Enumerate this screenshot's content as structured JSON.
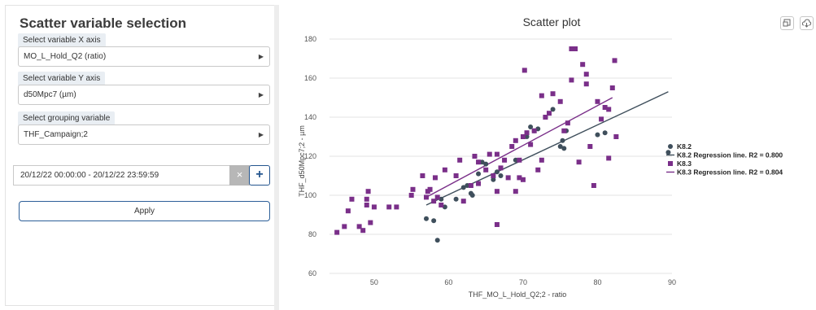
{
  "sidebar": {
    "title": "Scatter variable selection",
    "x_axis": {
      "label": "Select variable X axis",
      "value": "MO_L_Hold_Q2 (ratio)"
    },
    "y_axis": {
      "label": "Select variable Y axis",
      "value": "d50Mpc7 (µm)"
    },
    "grouping": {
      "label": "Select grouping variable",
      "value": "THF_Campaign;2"
    },
    "date_range": {
      "value": "20/12/22 00:00:00 - 20/12/22 23:59:59",
      "clear_symbol": "×",
      "add_symbol": "+"
    },
    "apply_label": "Apply"
  },
  "toolbar": {
    "expand_icon": "expand-icon",
    "download_icon": "cloud-download-icon"
  },
  "chart_data": {
    "type": "scatter",
    "title": "Scatter plot",
    "xlabel": "THF_MO_L_Hold_Q2;2 - ratio",
    "ylabel": "THF_d50Mpc7;2 - µm",
    "xlim": [
      44,
      90
    ],
    "ylim": [
      60,
      180
    ],
    "x_ticks": [
      50,
      60,
      70,
      80,
      90
    ],
    "y_ticks": [
      60,
      80,
      100,
      120,
      140,
      160,
      180
    ],
    "grid": "horizontal",
    "legend_position": "right",
    "series": [
      {
        "name": "K8.2",
        "marker": "circle",
        "color": "#3f4f5c",
        "points": [
          [
            57,
            88
          ],
          [
            58,
            87
          ],
          [
            58.5,
            77
          ],
          [
            59,
            98
          ],
          [
            59.5,
            94
          ],
          [
            61,
            98
          ],
          [
            62,
            104
          ],
          [
            62.5,
            105
          ],
          [
            63,
            101
          ],
          [
            63.2,
            100
          ],
          [
            64,
            111
          ],
          [
            64.5,
            117
          ],
          [
            65,
            116
          ],
          [
            66,
            108
          ],
          [
            66.5,
            112
          ],
          [
            67,
            110
          ],
          [
            69,
            118
          ],
          [
            70.5,
            130
          ],
          [
            71,
            135
          ],
          [
            71.5,
            133
          ],
          [
            72,
            134
          ],
          [
            73,
            140
          ],
          [
            74,
            144
          ],
          [
            75,
            125
          ],
          [
            75.3,
            128
          ],
          [
            75.5,
            124
          ],
          [
            75.8,
            133
          ],
          [
            80,
            131
          ],
          [
            81,
            132
          ],
          [
            89.5,
            122
          ]
        ],
        "regression": {
          "from": [
            57,
            95
          ],
          "to": [
            89.5,
            153
          ],
          "label": "K8.2 Regression line. R2 = 0.800"
        }
      },
      {
        "name": "K8.3",
        "marker": "square",
        "color": "#7a2f89",
        "points": [
          [
            45,
            81
          ],
          [
            46,
            84
          ],
          [
            46.5,
            92
          ],
          [
            47,
            98
          ],
          [
            48,
            84
          ],
          [
            48.5,
            82
          ],
          [
            49,
            95
          ],
          [
            49,
            98
          ],
          [
            49.2,
            102
          ],
          [
            49.5,
            86
          ],
          [
            50,
            94
          ],
          [
            52,
            94
          ],
          [
            53,
            94
          ],
          [
            55,
            100
          ],
          [
            55.2,
            103
          ],
          [
            56.5,
            110
          ],
          [
            57,
            99
          ],
          [
            57.2,
            102
          ],
          [
            57.5,
            103
          ],
          [
            58,
            97
          ],
          [
            58.2,
            109
          ],
          [
            58.5,
            99
          ],
          [
            59,
            95
          ],
          [
            59.5,
            113
          ],
          [
            61,
            110
          ],
          [
            61.5,
            118
          ],
          [
            62,
            97
          ],
          [
            63,
            105
          ],
          [
            63.5,
            120
          ],
          [
            64,
            117
          ],
          [
            65,
            113
          ],
          [
            65.5,
            121
          ],
          [
            66,
            110
          ],
          [
            66.5,
            121
          ],
          [
            67,
            114
          ],
          [
            67.5,
            118
          ],
          [
            68,
            109
          ],
          [
            68.5,
            125
          ],
          [
            69,
            128
          ],
          [
            69.5,
            118
          ],
          [
            70,
            130
          ],
          [
            70.5,
            132
          ],
          [
            71,
            126
          ],
          [
            71.5,
            133
          ],
          [
            72,
            113
          ],
          [
            72.5,
            118
          ],
          [
            73,
            140
          ],
          [
            73.5,
            142
          ],
          [
            74,
            152
          ],
          [
            75,
            148
          ],
          [
            75.5,
            133
          ],
          [
            76,
            137
          ],
          [
            76.5,
            159
          ],
          [
            77,
            175
          ],
          [
            77.5,
            117
          ],
          [
            78,
            167
          ],
          [
            78.5,
            157
          ],
          [
            79,
            125
          ],
          [
            79.5,
            105
          ],
          [
            80,
            148
          ],
          [
            80.5,
            139
          ],
          [
            81,
            145
          ],
          [
            81.5,
            119
          ],
          [
            82,
            155
          ],
          [
            82.3,
            169
          ],
          [
            82.5,
            130
          ],
          [
            66.5,
            85
          ],
          [
            69,
            102
          ],
          [
            69.5,
            109
          ],
          [
            70,
            108
          ],
          [
            70.2,
            164
          ],
          [
            76.5,
            175
          ],
          [
            78.5,
            162
          ],
          [
            81.5,
            144
          ],
          [
            72.5,
            151
          ],
          [
            64,
            106
          ],
          [
            66.5,
            102
          ]
        ],
        "regression": {
          "from": [
            57,
            99
          ],
          "to": [
            82,
            150
          ],
          "label": "K8.3 Regression line. R2 = 0.804"
        }
      }
    ]
  }
}
